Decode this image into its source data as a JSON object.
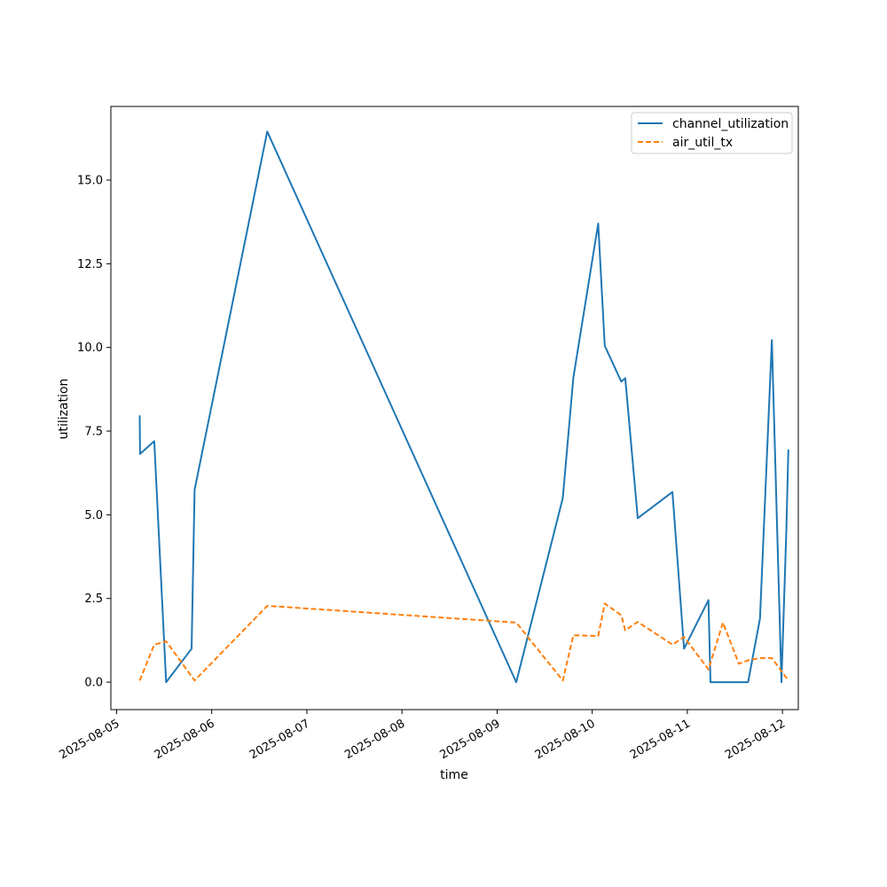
{
  "chart_data": {
    "type": "line",
    "xlabel": "time",
    "ylabel": "utilization",
    "xlim": [
      "2025-08-04T22:33",
      "2025-08-12T04:00"
    ],
    "ylim": [
      -0.82,
      17.2
    ],
    "grid": false,
    "legend_position": "top-right",
    "x_ticks": [
      "2025-08-05",
      "2025-08-06",
      "2025-08-07",
      "2025-08-08",
      "2025-08-09",
      "2025-08-10",
      "2025-08-11",
      "2025-08-12"
    ],
    "y_ticks": [
      "0.0",
      "2.5",
      "5.0",
      "7.5",
      "10.0",
      "12.5",
      "15.0"
    ],
    "series": [
      {
        "name": "channel_utilization",
        "color": "#1f77b4",
        "style": "solid",
        "points": [
          [
            "2025-08-05T05:50",
            7.97
          ],
          [
            "2025-08-05T05:55",
            6.82
          ],
          [
            "2025-08-05T09:30",
            7.2
          ],
          [
            "2025-08-05T12:30",
            0.0
          ],
          [
            "2025-08-05T18:55",
            1.0
          ],
          [
            "2025-08-05T19:40",
            5.75
          ],
          [
            "2025-08-06T14:00",
            16.45
          ],
          [
            "2025-08-09T04:50",
            0.0
          ],
          [
            "2025-08-09T16:35",
            5.5
          ],
          [
            "2025-08-09T19:15",
            9.1
          ],
          [
            "2025-08-10T01:30",
            13.7
          ],
          [
            "2025-08-10T03:10",
            10.05
          ],
          [
            "2025-08-10T07:20",
            8.98
          ],
          [
            "2025-08-10T08:20",
            9.08
          ],
          [
            "2025-08-10T11:30",
            4.9
          ],
          [
            "2025-08-10T20:15",
            5.68
          ],
          [
            "2025-08-10T23:10",
            1.0
          ],
          [
            "2025-08-11T05:20",
            2.45
          ],
          [
            "2025-08-11T05:50",
            0.0
          ],
          [
            "2025-08-11T15:20",
            0.0
          ],
          [
            "2025-08-11T18:20",
            1.9
          ],
          [
            "2025-08-11T21:20",
            10.22
          ],
          [
            "2025-08-11T23:45",
            0.0
          ],
          [
            "2025-08-12T01:00",
            4.6
          ],
          [
            "2025-08-12T01:30",
            6.95
          ]
        ]
      },
      {
        "name": "air_util_tx",
        "color": "#ff7f0e",
        "style": "dashed",
        "points": [
          [
            "2025-08-05T05:50",
            0.05
          ],
          [
            "2025-08-05T09:30",
            1.12
          ],
          [
            "2025-08-05T12:30",
            1.22
          ],
          [
            "2025-08-05T19:40",
            0.05
          ],
          [
            "2025-08-06T14:00",
            2.28
          ],
          [
            "2025-08-09T04:50",
            1.78
          ],
          [
            "2025-08-09T16:35",
            0.05
          ],
          [
            "2025-08-09T19:15",
            1.4
          ],
          [
            "2025-08-10T01:30",
            1.38
          ],
          [
            "2025-08-10T03:10",
            2.35
          ],
          [
            "2025-08-10T07:20",
            2.0
          ],
          [
            "2025-08-10T08:20",
            1.55
          ],
          [
            "2025-08-10T11:30",
            1.8
          ],
          [
            "2025-08-10T20:15",
            1.12
          ],
          [
            "2025-08-10T23:10",
            1.35
          ],
          [
            "2025-08-11T05:20",
            0.38
          ],
          [
            "2025-08-11T09:00",
            1.78
          ],
          [
            "2025-08-11T13:00",
            0.55
          ],
          [
            "2025-08-11T15:20",
            0.65
          ],
          [
            "2025-08-11T18:20",
            0.72
          ],
          [
            "2025-08-11T21:20",
            0.72
          ],
          [
            "2025-08-12T01:30",
            0.05
          ]
        ]
      }
    ]
  }
}
